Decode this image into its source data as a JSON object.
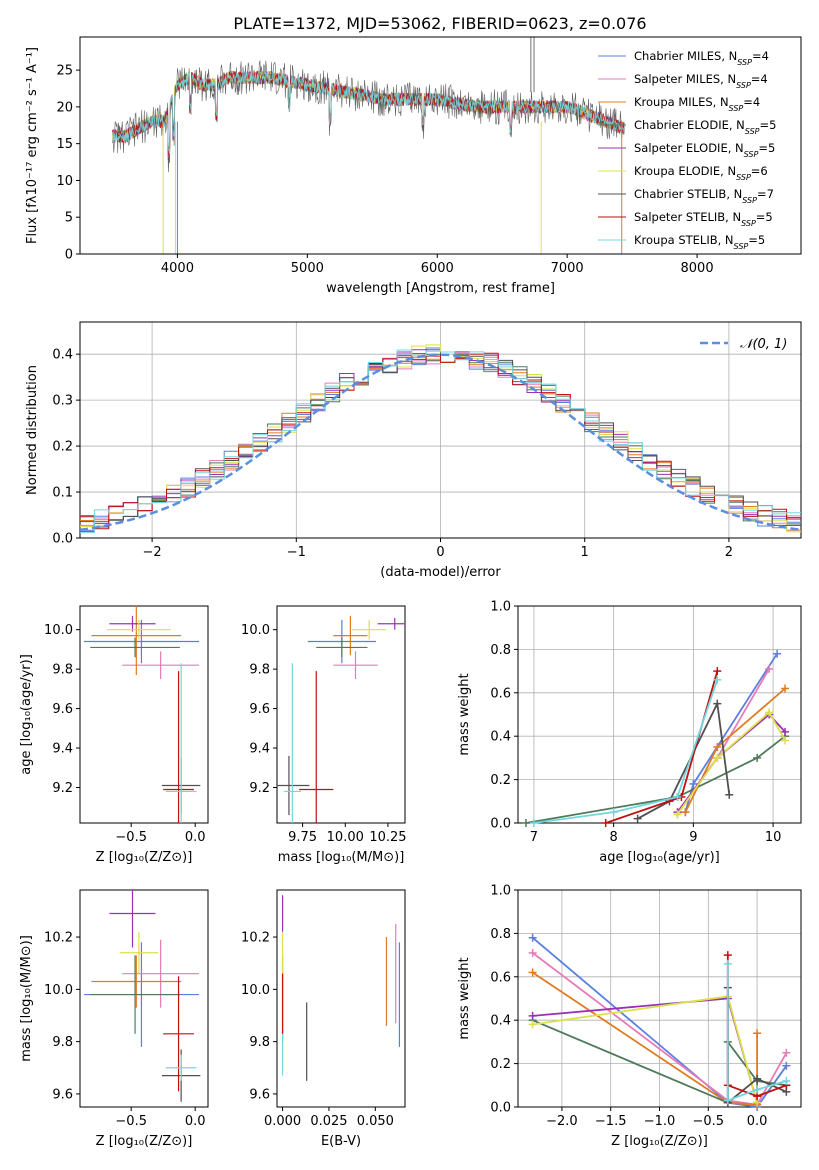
{
  "figure_title": "PLATE=1372, MJD=53062, FIBERID=0623, z=0.076",
  "series": [
    {
      "name": "Chabrier MILES",
      "nssp": "4",
      "color": "#5b7ee0"
    },
    {
      "name": "Salpeter MILES",
      "nssp": "4",
      "color": "#e87ab8"
    },
    {
      "name": "Kroupa MILES",
      "nssp": "4",
      "color": "#e07b20"
    },
    {
      "name": "Chabrier ELODIE",
      "nssp": "5",
      "color": "#4e7a5a"
    },
    {
      "name": "Salpeter ELODIE",
      "nssp": "5",
      "color": "#9b30b8"
    },
    {
      "name": "Kroupa ELODIE",
      "nssp": "6",
      "color": "#dde04a"
    },
    {
      "name": "Chabrier STELIB",
      "nssp": "7",
      "color": "#505050"
    },
    {
      "name": "Salpeter STELIB",
      "nssp": "5",
      "color": "#c01010"
    },
    {
      "name": "Kroupa STELIB",
      "nssp": "5",
      "color": "#70d8e0"
    }
  ],
  "chart_data": [
    {
      "id": "spectrum",
      "type": "line",
      "xlabel": "wavelength [Angstrom, rest frame]",
      "ylabel": "Flux [fλ10⁻¹⁷ erg cm⁻² s⁻¹ A⁻¹]",
      "xlim": [
        3250,
        8800
      ],
      "ylim": [
        0,
        29.5
      ],
      "xticks": [
        4000,
        5000,
        6000,
        7000,
        8000
      ],
      "yticks": [
        0,
        5,
        10,
        15,
        20,
        25
      ],
      "grid": false,
      "legend": "top-right",
      "continuum": {
        "x": [
          3500,
          3600,
          3700,
          3800,
          3900,
          4000,
          4100,
          4200,
          4300,
          4400,
          4500,
          4700,
          5000,
          5300,
          5600,
          6000,
          6300,
          6600,
          7000,
          7300,
          7450
        ],
        "y": [
          16,
          16,
          17,
          18,
          18,
          23,
          24,
          23,
          23,
          24,
          24,
          24,
          23,
          22,
          21,
          21,
          20,
          20,
          20,
          18,
          17
        ]
      }
    },
    {
      "id": "residuals",
      "type": "bar",
      "xlabel": "(data-model)/error",
      "ylabel": "Normed distribution",
      "xlim": [
        -2.5,
        2.5
      ],
      "ylim": [
        0,
        0.47
      ],
      "xticks": [
        -2,
        -1,
        0,
        1,
        2
      ],
      "yticks": [
        0.0,
        0.1,
        0.2,
        0.3,
        0.4
      ],
      "grid": true,
      "legend": "top-right",
      "legend_label": "𝒩(0, 1)",
      "reference_curve": {
        "mean": 0,
        "sigma": 1
      }
    },
    {
      "id": "age-vs-Z",
      "type": "scatter",
      "xlabel": "Z [log₁₀(Z/Z⊙)]",
      "ylabel": "age  [log₁₀(age/yr)]",
      "xlim": [
        -0.9,
        0.1
      ],
      "ylim": [
        9.02,
        10.12
      ],
      "xticks": [
        -0.5,
        0.0
      ],
      "yticks": [
        9.2,
        9.4,
        9.6,
        9.8,
        10.0
      ],
      "grid": false,
      "points": [
        {
          "x": -0.42,
          "y": 9.94,
          "xerr": 0.45,
          "yerr": 0.11
        },
        {
          "x": -0.27,
          "y": 9.82,
          "xerr": 0.3,
          "yerr": 0.07
        },
        {
          "x": -0.46,
          "y": 9.97,
          "xerr": 0.35,
          "yerr": 0.2
        },
        {
          "x": -0.47,
          "y": 9.91,
          "xerr": 0.35,
          "yerr": 0.05
        },
        {
          "x": -0.49,
          "y": 10.03,
          "xerr": 0.18,
          "yerr": 0.04
        },
        {
          "x": -0.44,
          "y": 10.0,
          "xerr": 0.25,
          "yerr": 0.05
        },
        {
          "x": -0.11,
          "y": 9.21,
          "xerr": 0.15,
          "yerr": 0.14
        },
        {
          "x": -0.13,
          "y": 9.19,
          "xerr": 0.12,
          "yerr": 0.6
        },
        {
          "x": -0.11,
          "y": 9.18,
          "xerr": 0.12,
          "yerr": 0.65
        }
      ]
    },
    {
      "id": "age-vs-mass",
      "type": "scatter",
      "xlabel": "mass [log₁₀(M/M⊙)]",
      "ylabel": "",
      "xlim": [
        9.6,
        10.35
      ],
      "ylim": [
        9.02,
        10.12
      ],
      "xticks": [
        9.75,
        10.0,
        10.25
      ],
      "xticklabels": [
        "9.75",
        "10.00",
        "10.25"
      ],
      "yticks": [
        9.2,
        9.4,
        9.6,
        9.8,
        10.0
      ],
      "grid": false,
      "points": [
        {
          "x": 9.98,
          "y": 9.94,
          "xerr": 0.2,
          "yerr": 0.11
        },
        {
          "x": 10.06,
          "y": 9.82,
          "xerr": 0.13,
          "yerr": 0.07
        },
        {
          "x": 10.03,
          "y": 9.97,
          "xerr": 0.1,
          "yerr": 0.1
        },
        {
          "x": 9.98,
          "y": 9.91,
          "xerr": 0.15,
          "yerr": 0.05
        },
        {
          "x": 10.29,
          "y": 10.03,
          "xerr": 0.1,
          "yerr": 0.03
        },
        {
          "x": 10.14,
          "y": 10.0,
          "xerr": 0.1,
          "yerr": 0.05
        },
        {
          "x": 9.67,
          "y": 9.21,
          "xerr": 0.12,
          "yerr": 0.15
        },
        {
          "x": 9.83,
          "y": 9.19,
          "xerr": 0.1,
          "yerr": 0.6
        },
        {
          "x": 9.69,
          "y": 9.18,
          "xerr": 0.05,
          "yerr": 0.65
        }
      ]
    },
    {
      "id": "massweight-vs-age",
      "type": "line",
      "xlabel": "age  [log₁₀(age/yr)]",
      "ylabel": "mass weight",
      "xlim": [
        6.8,
        10.35
      ],
      "ylim": [
        0,
        1.0
      ],
      "xticks": [
        7,
        8,
        9,
        10
      ],
      "yticks": [
        0.0,
        0.2,
        0.4,
        0.6,
        0.8,
        1.0
      ],
      "grid": true,
      "lines": [
        {
          "x": [
            8.9,
            9.0,
            10.05
          ],
          "y": [
            0.05,
            0.18,
            0.78
          ]
        },
        {
          "x": [
            8.8,
            9.3,
            9.95
          ],
          "y": [
            0.04,
            0.3,
            0.71
          ]
        },
        {
          "x": [
            8.9,
            9.3,
            10.15
          ],
          "y": [
            0.05,
            0.35,
            0.62
          ]
        },
        {
          "x": [
            6.9,
            8.8,
            9.8,
            10.15
          ],
          "y": [
            0.0,
            0.12,
            0.3,
            0.4
          ]
        },
        {
          "x": [
            8.8,
            9.3,
            9.95,
            10.15
          ],
          "y": [
            0.05,
            0.3,
            0.5,
            0.42
          ]
        },
        {
          "x": [
            8.8,
            9.3,
            9.95,
            10.15
          ],
          "y": [
            0.04,
            0.3,
            0.51,
            0.38
          ]
        },
        {
          "x": [
            8.3,
            8.7,
            9.3,
            9.45
          ],
          "y": [
            0.02,
            0.1,
            0.55,
            0.13
          ]
        },
        {
          "x": [
            7.9,
            8.85,
            9.3
          ],
          "y": [
            0.0,
            0.12,
            0.7
          ]
        },
        {
          "x": [
            7.0,
            8.0,
            8.8,
            9.3
          ],
          "y": [
            0.0,
            0.05,
            0.12,
            0.66
          ]
        }
      ]
    },
    {
      "id": "mass-vs-Z",
      "type": "scatter",
      "xlabel": "Z [log₁₀(Z/Z⊙)]",
      "ylabel": "mass [log₁₀(M/M⊙)]",
      "xlim": [
        -0.9,
        0.1
      ],
      "ylim": [
        9.55,
        10.38
      ],
      "xticks": [
        -0.5,
        0.0
      ],
      "yticks": [
        9.6,
        9.8,
        10.0,
        10.2
      ],
      "grid": false,
      "points": [
        {
          "x": -0.42,
          "y": 9.98,
          "xerr": 0.45,
          "yerr": 0.2
        },
        {
          "x": -0.27,
          "y": 10.06,
          "xerr": 0.3,
          "yerr": 0.13
        },
        {
          "x": -0.46,
          "y": 10.03,
          "xerr": 0.35,
          "yerr": 0.1
        },
        {
          "x": -0.47,
          "y": 9.98,
          "xerr": 0.35,
          "yerr": 0.15
        },
        {
          "x": -0.49,
          "y": 10.29,
          "xerr": 0.18,
          "yerr": 0.13
        },
        {
          "x": -0.44,
          "y": 10.14,
          "xerr": 0.15,
          "yerr": 0.08
        },
        {
          "x": -0.11,
          "y": 9.67,
          "xerr": 0.15,
          "yerr": 0.1
        },
        {
          "x": -0.13,
          "y": 9.83,
          "xerr": 0.12,
          "yerr": 0.22
        },
        {
          "x": -0.11,
          "y": 9.7,
          "xerr": 0.12,
          "yerr": 0.05
        }
      ]
    },
    {
      "id": "mass-vs-EBV",
      "type": "scatter",
      "xlabel": "E(B-V)",
      "ylabel": "",
      "xlim": [
        -0.003,
        0.066
      ],
      "ylim": [
        9.55,
        10.38
      ],
      "xticks": [
        0.0,
        0.025,
        0.05
      ],
      "xticklabels": [
        "0.000",
        "0.025",
        "0.050"
      ],
      "yticks": [
        9.6,
        9.8,
        10.0,
        10.2
      ],
      "grid": false,
      "points": [
        {
          "x": 0.063,
          "y": 9.98,
          "xerr": 0,
          "yerr": 0.2
        },
        {
          "x": 0.061,
          "y": 10.06,
          "xerr": 0,
          "yerr": 0.19
        },
        {
          "x": 0.056,
          "y": 10.03,
          "xerr": 0,
          "yerr": 0.17
        },
        {
          "x": 0.0,
          "y": 9.98,
          "xerr": 0,
          "yerr": 0.15
        },
        {
          "x": 0.0,
          "y": 10.29,
          "xerr": 0,
          "yerr": 0.07
        },
        {
          "x": 0.0,
          "y": 10.14,
          "xerr": 0,
          "yerr": 0.08
        },
        {
          "x": 0.013,
          "y": 9.8,
          "xerr": 0,
          "yerr": 0.15
        },
        {
          "x": 0.0,
          "y": 9.93,
          "xerr": 0,
          "yerr": 0.13
        },
        {
          "x": 0.0,
          "y": 9.75,
          "xerr": 0,
          "yerr": 0.08
        }
      ]
    },
    {
      "id": "massweight-vs-Z",
      "type": "line",
      "xlabel": "Z [log₁₀(Z/Z⊙)]",
      "ylabel": "mass weight",
      "xlim": [
        -2.45,
        0.45
      ],
      "ylim": [
        0,
        1.0
      ],
      "xticks": [
        -2.0,
        -1.5,
        -1.0,
        -0.5,
        0.0
      ],
      "yticks": [
        0.0,
        0.2,
        0.4,
        0.6,
        0.8,
        1.0
      ],
      "grid": true,
      "lines": [
        {
          "x": [
            -2.3,
            -0.3,
            0.0,
            0.3
          ],
          "y": [
            0.78,
            0.02,
            0.0,
            0.19
          ]
        },
        {
          "x": [
            -2.3,
            -0.3,
            0.0,
            0.3
          ],
          "y": [
            0.71,
            0.03,
            0.01,
            0.25
          ]
        },
        {
          "x": [
            -2.3,
            -0.3,
            0.0,
            0.0
          ],
          "y": [
            0.62,
            0.02,
            0.01,
            0.34
          ]
        },
        {
          "x": [
            -2.3,
            -0.3,
            -0.3,
            0.0,
            0.3
          ],
          "y": [
            0.4,
            0.02,
            0.3,
            0.12,
            0.1
          ]
        },
        {
          "x": [
            -2.3,
            -0.3,
            0.0
          ],
          "y": [
            0.42,
            0.5,
            0.02
          ]
        },
        {
          "x": [
            -2.3,
            -0.3,
            0.0
          ],
          "y": [
            0.38,
            0.51,
            0.02
          ]
        },
        {
          "x": [
            -0.3,
            -0.3,
            0.0,
            0.3
          ],
          "y": [
            0.55,
            0.02,
            0.13,
            0.07
          ]
        },
        {
          "x": [
            -0.3,
            -0.3,
            0.0,
            0.3
          ],
          "y": [
            0.7,
            0.1,
            0.05,
            0.1
          ]
        },
        {
          "x": [
            -0.3,
            -0.3,
            0.0,
            0.3
          ],
          "y": [
            0.66,
            0.03,
            0.08,
            0.12
          ]
        }
      ]
    }
  ]
}
